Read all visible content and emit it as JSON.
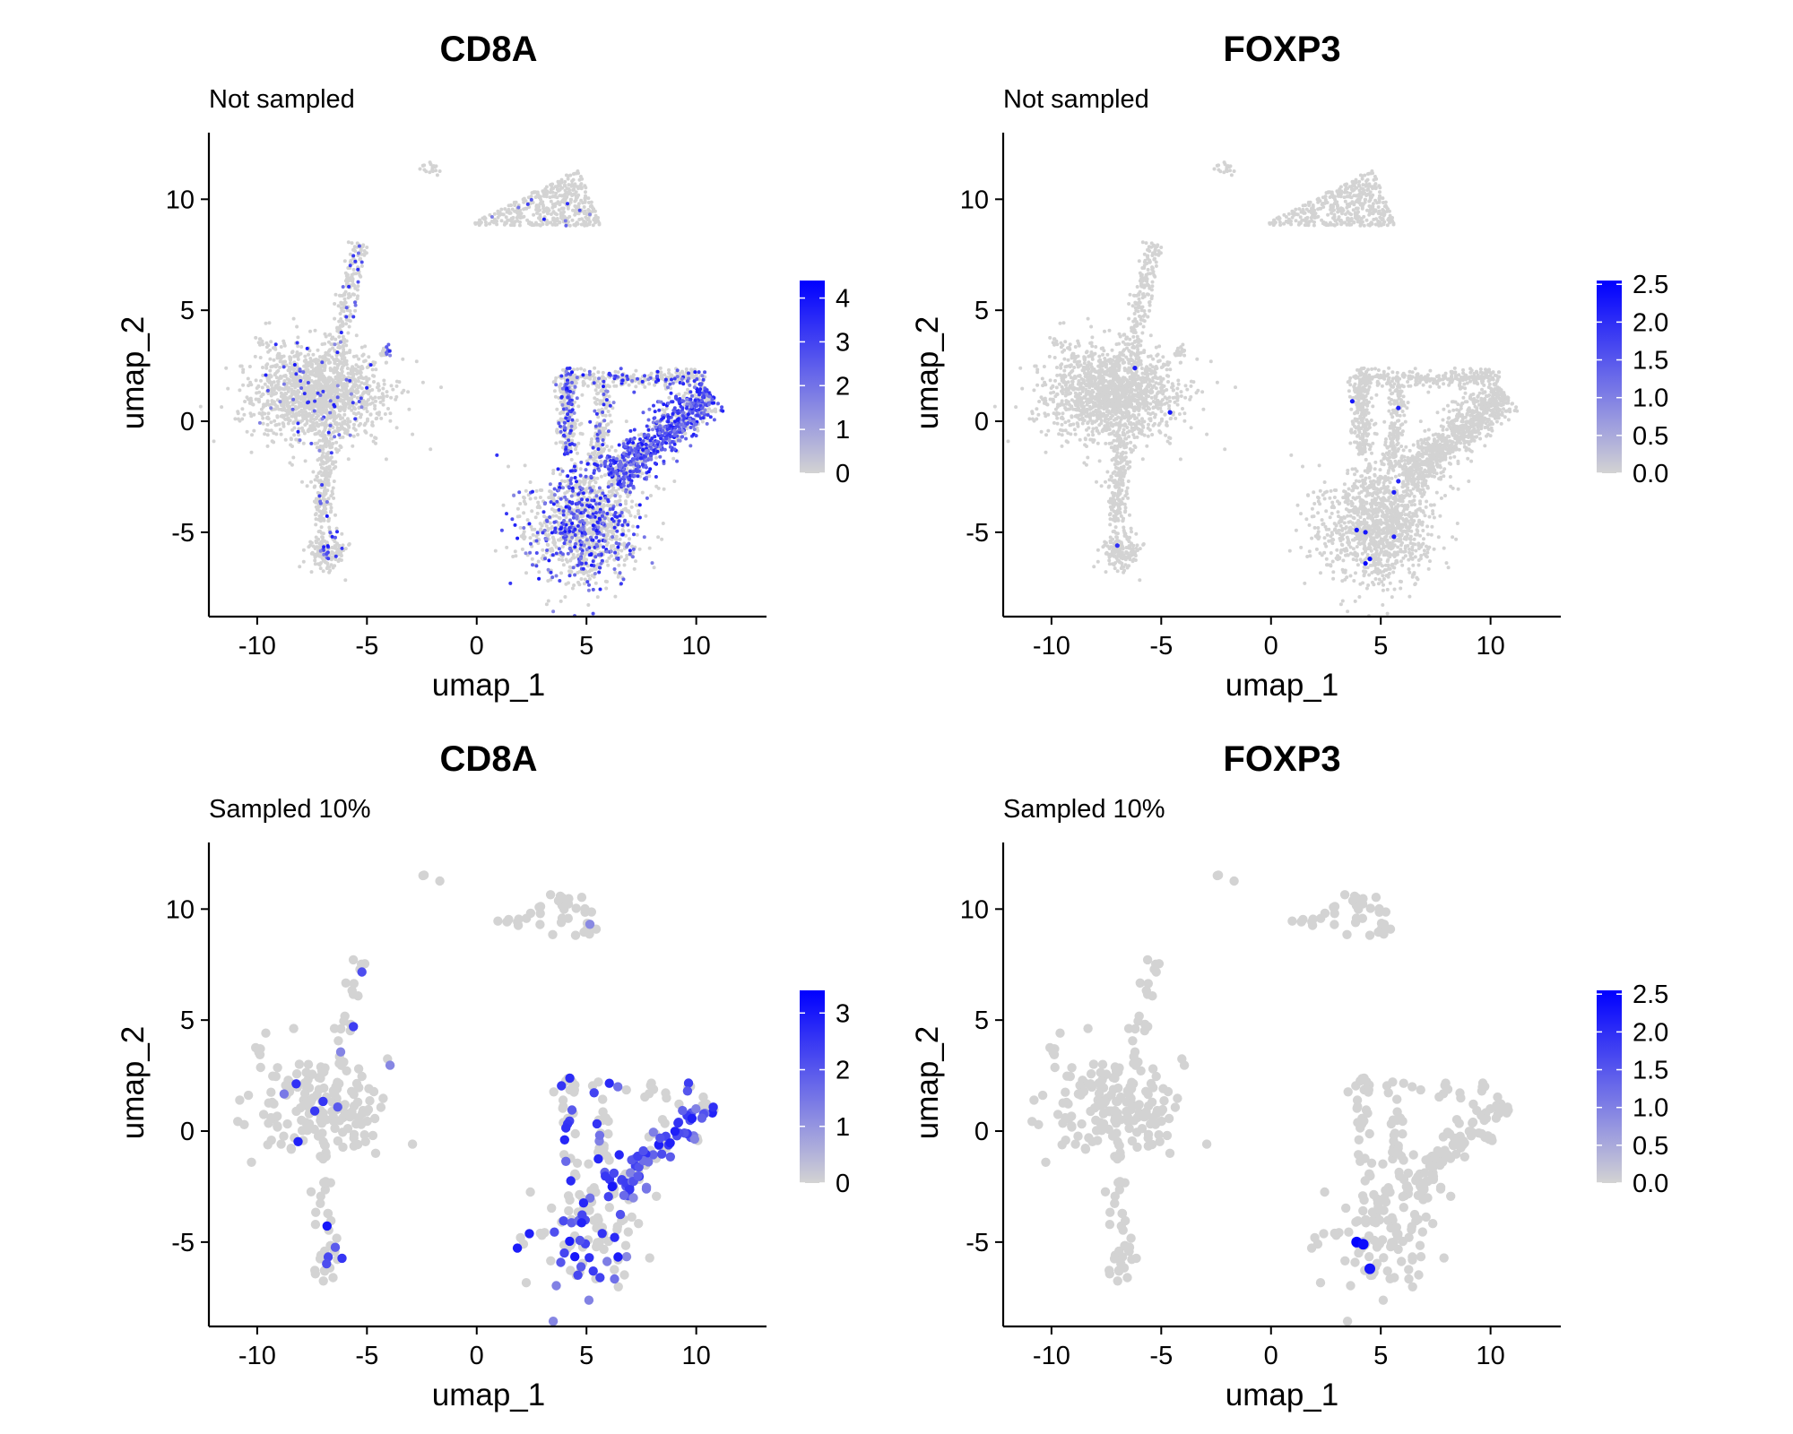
{
  "chart_data": [
    {
      "type": "scatter",
      "title": "CD8A",
      "subtitle": "Not sampled",
      "xlabel": "umap_1",
      "ylabel": "umap_2",
      "xlim": [
        -12.2,
        13.2
      ],
      "ylim": [
        -8.8,
        13.0
      ],
      "xticks": [
        -10,
        -5,
        0,
        5,
        10
      ],
      "yticks": [
        -5,
        0,
        5,
        10
      ],
      "x_tick_labels": [
        "-10",
        "-5",
        "0",
        "5",
        "10"
      ],
      "y_tick_labels": [
        "-5",
        "0",
        "5",
        "10"
      ],
      "grid": false,
      "legend": "right",
      "colorbar": {
        "min": 0,
        "max": 4.4,
        "ticks": [
          0,
          1,
          2,
          3,
          4
        ],
        "tick_labels": [
          "0",
          "1",
          "2",
          "3",
          "4"
        ],
        "low_color": "#d3d3d3",
        "high_color": "#0000ff"
      },
      "point_size": "small",
      "density": 1.0,
      "gene": "CD8A"
    },
    {
      "type": "scatter",
      "title": "FOXP3",
      "subtitle": "Not sampled",
      "xlabel": "umap_1",
      "ylabel": "umap_2",
      "xlim": [
        -12.2,
        13.2
      ],
      "ylim": [
        -8.8,
        13.0
      ],
      "xticks": [
        -10,
        -5,
        0,
        5,
        10
      ],
      "yticks": [
        -5,
        0,
        5,
        10
      ],
      "x_tick_labels": [
        "-10",
        "-5",
        "0",
        "5",
        "10"
      ],
      "y_tick_labels": [
        "-5",
        "0",
        "5",
        "10"
      ],
      "grid": false,
      "legend": "right",
      "colorbar": {
        "min": 0,
        "max": 2.55,
        "ticks": [
          0,
          0.5,
          1,
          1.5,
          2,
          2.5
        ],
        "tick_labels": [
          "0.0",
          "0.5",
          "1.0",
          "1.5",
          "2.0",
          "2.5"
        ],
        "low_color": "#d3d3d3",
        "high_color": "#0000ff"
      },
      "point_size": "small",
      "density": 1.0,
      "gene": "FOXP3",
      "expressing_cells": [
        {
          "x": -6.2,
          "y": 2.4,
          "value": 2.2
        },
        {
          "x": -4.6,
          "y": 0.4,
          "value": 2.3
        },
        {
          "x": -7.0,
          "y": -5.6,
          "value": 2.0
        },
        {
          "x": 3.7,
          "y": 0.9,
          "value": 2.3
        },
        {
          "x": 5.8,
          "y": 0.6,
          "value": 2.2
        },
        {
          "x": 5.8,
          "y": -2.7,
          "value": 2.1
        },
        {
          "x": 5.6,
          "y": -3.2,
          "value": 2.2
        },
        {
          "x": 3.9,
          "y": -4.9,
          "value": 2.4
        },
        {
          "x": 4.3,
          "y": -5.0,
          "value": 2.3
        },
        {
          "x": 5.6,
          "y": -5.2,
          "value": 2.2
        },
        {
          "x": 4.5,
          "y": -6.2,
          "value": 2.4
        },
        {
          "x": 4.3,
          "y": -6.4,
          "value": 2.5
        }
      ]
    },
    {
      "type": "scatter",
      "title": "CD8A",
      "subtitle": "Sampled 10%",
      "xlabel": "umap_1",
      "ylabel": "umap_2",
      "xlim": [
        -12.2,
        13.2
      ],
      "ylim": [
        -8.8,
        13.0
      ],
      "xticks": [
        -10,
        -5,
        0,
        5,
        10
      ],
      "yticks": [
        -5,
        0,
        5,
        10
      ],
      "x_tick_labels": [
        "-10",
        "-5",
        "0",
        "5",
        "10"
      ],
      "y_tick_labels": [
        "-5",
        "0",
        "5",
        "10"
      ],
      "grid": false,
      "legend": "right",
      "colorbar": {
        "min": 0,
        "max": 3.4,
        "ticks": [
          0,
          1,
          2,
          3
        ],
        "tick_labels": [
          "0",
          "1",
          "2",
          "3"
        ],
        "low_color": "#d3d3d3",
        "high_color": "#0000ff"
      },
      "point_size": "large",
      "density": 0.1,
      "gene": "CD8A"
    },
    {
      "type": "scatter",
      "title": "FOXP3",
      "subtitle": "Sampled 10%",
      "xlabel": "umap_1",
      "ylabel": "umap_2",
      "xlim": [
        -12.2,
        13.2
      ],
      "ylim": [
        -8.8,
        13.0
      ],
      "xticks": [
        -10,
        -5,
        0,
        5,
        10
      ],
      "yticks": [
        -5,
        0,
        5,
        10
      ],
      "x_tick_labels": [
        "-10",
        "-5",
        "0",
        "5",
        "10"
      ],
      "y_tick_labels": [
        "-5",
        "0",
        "5",
        "10"
      ],
      "grid": false,
      "legend": "right",
      "colorbar": {
        "min": 0,
        "max": 2.55,
        "ticks": [
          0,
          0.5,
          1,
          1.5,
          2,
          2.5
        ],
        "tick_labels": [
          "0.0",
          "0.5",
          "1.0",
          "1.5",
          "2.0",
          "2.5"
        ],
        "low_color": "#d3d3d3",
        "high_color": "#0000ff"
      },
      "point_size": "large",
      "density": 0.1,
      "gene": "FOXP3",
      "expressing_cells": [
        {
          "x": 3.9,
          "y": -5.0,
          "value": 2.5
        },
        {
          "x": 4.2,
          "y": -5.1,
          "value": 2.4
        },
        {
          "x": 4.5,
          "y": -6.2,
          "value": 2.3
        }
      ]
    }
  ]
}
